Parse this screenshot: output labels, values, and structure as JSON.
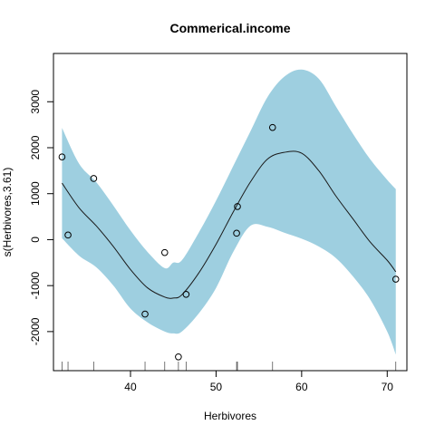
{
  "chart_data": {
    "type": "line",
    "title": "Commerical.income",
    "xlabel": "Herbivores",
    "ylabel": "s(Herbivores,3.61)",
    "xlim": [
      31,
      72.3
    ],
    "ylim": [
      -2850,
      4050
    ],
    "x_ticks": [
      40,
      50,
      60,
      70
    ],
    "y_ticks": [
      -2000,
      -1000,
      0,
      1000,
      2000,
      3000
    ],
    "colors": {
      "band": "#9ecfe0",
      "line": "#1a1a1a",
      "points": "#000000"
    },
    "ci_band": {
      "x": [
        32,
        34,
        36,
        38,
        40,
        42,
        44,
        45,
        46,
        48,
        50,
        52,
        54,
        56,
        58,
        60,
        62,
        64,
        66,
        68,
        70,
        71
      ],
      "upper": [
        2430,
        1650,
        1250,
        740,
        200,
        -270,
        -620,
        -500,
        -450,
        160,
        850,
        1600,
        2350,
        3100,
        3550,
        3700,
        3500,
        2900,
        2300,
        1750,
        1300,
        1100
      ],
      "lower": [
        30,
        -350,
        -600,
        -1000,
        -1500,
        -1800,
        -2000,
        -2040,
        -2000,
        -1600,
        -1050,
        -270,
        300,
        280,
        150,
        20,
        -150,
        -400,
        -800,
        -1300,
        -2000,
        -2500
      ]
    },
    "smooth": {
      "x": [
        32,
        34,
        36,
        38,
        40,
        42,
        44,
        45,
        46,
        48,
        50,
        52,
        54,
        56,
        58,
        60,
        62,
        64,
        66,
        68,
        70,
        71
      ],
      "y": [
        1230,
        690,
        300,
        -150,
        -650,
        -1050,
        -1250,
        -1270,
        -1200,
        -720,
        -100,
        600,
        1250,
        1750,
        1900,
        1880,
        1500,
        950,
        450,
        -50,
        -450,
        -700
      ]
    },
    "points": {
      "x": [
        32,
        32.7,
        35.7,
        41.7,
        44,
        45.6,
        46.5,
        52.4,
        52.5,
        56.6,
        71
      ],
      "y": [
        1800,
        100,
        1330,
        -1620,
        -280,
        -2550,
        -1190,
        140,
        720,
        2440,
        -860
      ]
    },
    "rug": [
      32,
      32.7,
      35.7,
      41.7,
      44,
      45.6,
      46.5,
      52.4,
      52.5,
      56.6,
      71
    ]
  }
}
